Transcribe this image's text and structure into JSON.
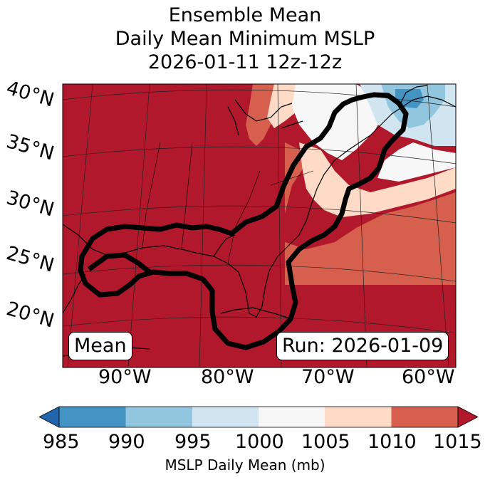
{
  "title": {
    "line1": "Ensemble Mean",
    "line2": "Daily Mean Minimum MSLP",
    "line3": "2026-01-11 12z-12z"
  },
  "map": {
    "lat_labels": [
      "40°N",
      "35°N",
      "30°N",
      "25°N",
      "20°N"
    ],
    "lon_labels": [
      "90°W",
      "80°W",
      "70°W",
      "60°W"
    ],
    "mean_badge": "Mean",
    "run_badge": "Run: 2026-01-09"
  },
  "colorbar": {
    "ticks": [
      "985",
      "990",
      "995",
      "1000",
      "1005",
      "1010",
      "1015"
    ],
    "label": "MSLP Daily Mean (mb)",
    "colors": {
      "below_985": "#2166ac",
      "985_990": "#4393c3",
      "990_995": "#92c5de",
      "995_1000": "#d1e5f0",
      "1000_1005": "#f7f7f7",
      "1005_1010": "#fddbc7",
      "1010_1015": "#d6604d",
      "above_1015": "#b2182b"
    }
  }
}
